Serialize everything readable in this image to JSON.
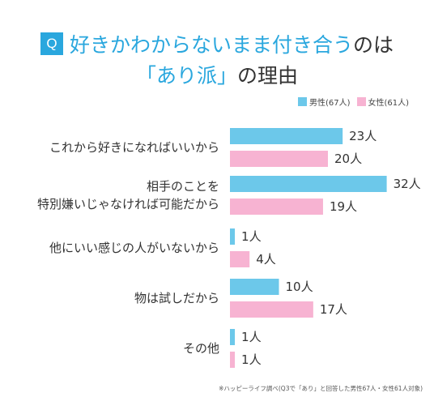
{
  "title": {
    "badge": "Q",
    "line1_accent": "好きかわからないまま付き合う",
    "line1_rest": "のは",
    "line2_accent": "「あり派」",
    "line2_rest": "の理由"
  },
  "colors": {
    "male": "#6cc8ea",
    "female": "#f7b3d2",
    "accent": "#2aa7de"
  },
  "legend": {
    "male": "男性(67人)",
    "female": "女性(61人)"
  },
  "footnote": "※ハッピーライフ調べ(Q3で「あり」と回答した男性67人・女性61人対象)",
  "chart_data": {
    "type": "bar",
    "orientation": "horizontal",
    "unit": "人",
    "categories": [
      [
        "これから好きになればいいから"
      ],
      [
        "相手のことを",
        "特別嫌いじゃなければ可能だから"
      ],
      [
        "他にいい感じの人がいないから"
      ],
      [
        "物は試しだから"
      ],
      [
        "その他"
      ]
    ],
    "series": [
      {
        "name": "男性(67人)",
        "values": [
          23,
          32,
          1,
          10,
          1
        ]
      },
      {
        "name": "女性(61人)",
        "values": [
          20,
          19,
          4,
          17,
          1
        ]
      }
    ],
    "value_labels": {
      "male": [
        "23人",
        "32人",
        "1人",
        "10人",
        "1人"
      ],
      "female": [
        "20人",
        "19人",
        "4人",
        "17人",
        "1人"
      ]
    }
  }
}
